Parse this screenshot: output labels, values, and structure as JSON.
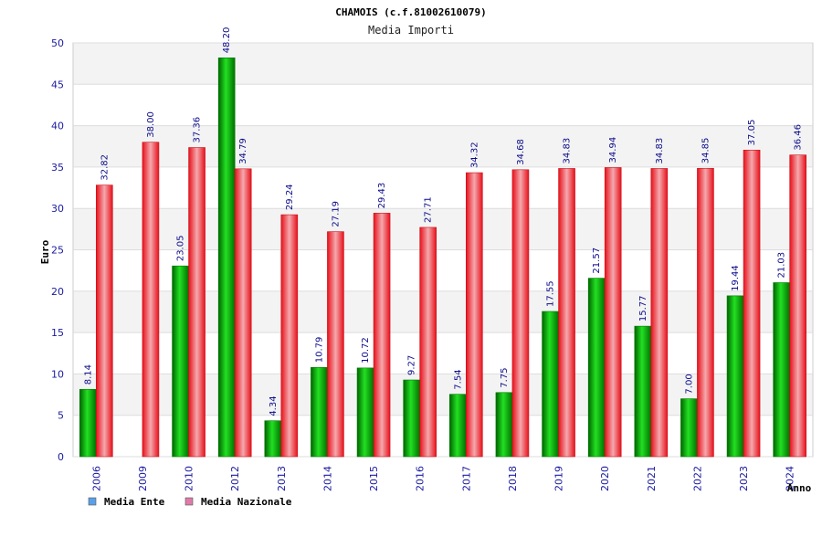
{
  "chart_data": {
    "type": "bar",
    "title": "CHAMOIS (c.f.81002610079)",
    "subtitle": "Media Importi",
    "xlabel": "Anno",
    "ylabel": "Euro",
    "ylim": [
      0,
      50
    ],
    "yticks": [
      0,
      5,
      10,
      15,
      20,
      25,
      30,
      35,
      40,
      45,
      50
    ],
    "grid": true,
    "legend_position": "bottom-left",
    "categories": [
      "2006",
      "2009",
      "2010",
      "2012",
      "2013",
      "2014",
      "2015",
      "2016",
      "2017",
      "2018",
      "2019",
      "2020",
      "2021",
      "2022",
      "2023",
      "2024"
    ],
    "series": [
      {
        "name": "Media Ente",
        "color": "#00b400",
        "legend_color": "#5aa0e8",
        "values": [
          8.14,
          null,
          23.05,
          48.2,
          4.34,
          10.79,
          10.72,
          9.27,
          7.54,
          7.75,
          17.55,
          21.57,
          15.77,
          7.0,
          19.44,
          21.03
        ],
        "labels": [
          "8.14",
          "",
          "23.05",
          "48.20",
          "4.34",
          "10.79",
          "10.72",
          "9.27",
          "7.54",
          "7.75",
          "17.55",
          "21.57",
          "15.77",
          "7.00",
          "19.44",
          "21.03"
        ]
      },
      {
        "name": "Media Nazionale",
        "color": "#e8202a",
        "legend_color": "#e07aa8",
        "values": [
          32.82,
          38.0,
          37.36,
          34.79,
          29.24,
          27.19,
          29.43,
          27.71,
          34.32,
          34.68,
          34.83,
          34.94,
          34.83,
          34.85,
          37.05,
          36.46
        ],
        "labels": [
          "32.82",
          "38.00",
          "37.36",
          "34.79",
          "29.24",
          "27.19",
          "29.43",
          "27.71",
          "34.32",
          "34.68",
          "34.83",
          "34.94",
          "34.83",
          "34.85",
          "37.05",
          "36.46"
        ]
      }
    ]
  }
}
